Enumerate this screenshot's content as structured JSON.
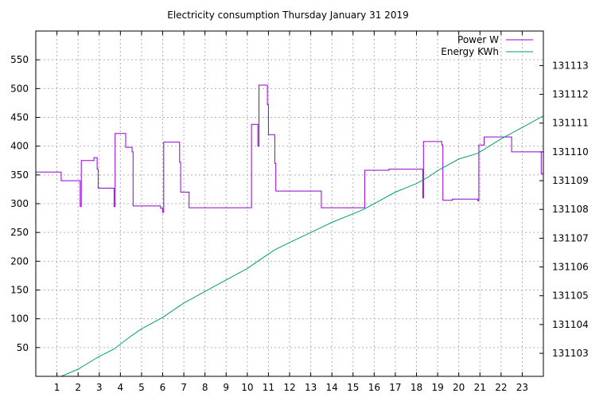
{
  "chart_data": {
    "type": "line",
    "title": "Electricity consumption Thursday January 31 2019",
    "xlabel": "",
    "ylabel": "",
    "y2label": "",
    "xlim": [
      0,
      24
    ],
    "ylim": [
      0,
      600
    ],
    "y2lim": [
      131102.2,
      131114.2
    ],
    "x_ticks": [
      1,
      2,
      3,
      4,
      5,
      6,
      7,
      8,
      9,
      10,
      11,
      12,
      13,
      14,
      15,
      16,
      17,
      18,
      19,
      20,
      21,
      22,
      23
    ],
    "y_ticks": [
      50,
      100,
      150,
      200,
      250,
      300,
      350,
      400,
      450,
      500,
      550
    ],
    "y2_ticks": [
      131103,
      131104,
      131105,
      131106,
      131107,
      131108,
      131109,
      131110,
      131111,
      131112,
      131113
    ],
    "grid": true,
    "grid_style": "dotted",
    "legend_position": "top-right",
    "series": [
      {
        "name": "Power W",
        "axis": "left",
        "color": "#9400d3",
        "style": "step",
        "points": [
          [
            0,
            355
          ],
          [
            1.2,
            355
          ],
          [
            1.2,
            340
          ],
          [
            2.1,
            340
          ],
          [
            2.1,
            295
          ],
          [
            2.15,
            295
          ],
          [
            2.15,
            375
          ],
          [
            2.75,
            375
          ],
          [
            2.75,
            380
          ],
          [
            2.9,
            380
          ],
          [
            2.9,
            360
          ],
          [
            2.95,
            360
          ],
          [
            2.95,
            327
          ],
          [
            3.7,
            327
          ],
          [
            3.7,
            295
          ],
          [
            3.75,
            295
          ],
          [
            3.75,
            422
          ],
          [
            4.25,
            422
          ],
          [
            4.25,
            398
          ],
          [
            4.55,
            398
          ],
          [
            4.55,
            390
          ],
          [
            4.6,
            390
          ],
          [
            4.6,
            296
          ],
          [
            5.9,
            296
          ],
          [
            5.9,
            292
          ],
          [
            6.0,
            292
          ],
          [
            6.0,
            285
          ],
          [
            6.05,
            285
          ],
          [
            6.05,
            407
          ],
          [
            6.8,
            407
          ],
          [
            6.8,
            372
          ],
          [
            6.85,
            372
          ],
          [
            6.85,
            320
          ],
          [
            7.25,
            320
          ],
          [
            7.25,
            293
          ],
          [
            10.2,
            293
          ],
          [
            10.2,
            438
          ],
          [
            10.5,
            438
          ],
          [
            10.5,
            400
          ],
          [
            10.55,
            400
          ],
          [
            10.55,
            506
          ],
          [
            10.95,
            506
          ],
          [
            10.95,
            472
          ],
          [
            11.0,
            472
          ],
          [
            11.0,
            420
          ],
          [
            11.3,
            420
          ],
          [
            11.3,
            370
          ],
          [
            11.35,
            370
          ],
          [
            11.35,
            322
          ],
          [
            13.5,
            322
          ],
          [
            13.5,
            293
          ],
          [
            15.55,
            293
          ],
          [
            15.55,
            358
          ],
          [
            16.7,
            358
          ],
          [
            16.7,
            360
          ],
          [
            18.3,
            360
          ],
          [
            18.3,
            310
          ],
          [
            18.33,
            310
          ],
          [
            18.33,
            408
          ],
          [
            19.2,
            408
          ],
          [
            19.2,
            402
          ],
          [
            19.25,
            402
          ],
          [
            19.25,
            306
          ],
          [
            19.7,
            306
          ],
          [
            19.7,
            308
          ],
          [
            20.9,
            308
          ],
          [
            20.9,
            305
          ],
          [
            20.95,
            305
          ],
          [
            20.95,
            402
          ],
          [
            21.2,
            402
          ],
          [
            21.2,
            416
          ],
          [
            22.5,
            416
          ],
          [
            22.5,
            390
          ],
          [
            23.9,
            390
          ],
          [
            23.9,
            352
          ],
          [
            24,
            352
          ]
        ]
      },
      {
        "name": "Energy KWh",
        "axis": "right",
        "color": "#009e73",
        "style": "line",
        "points": [
          [
            1.2,
            131102.2
          ],
          [
            2.0,
            131102.45
          ],
          [
            2.9,
            131102.85
          ],
          [
            3.7,
            131103.15
          ],
          [
            4.5,
            131103.6
          ],
          [
            5.0,
            131103.85
          ],
          [
            6.0,
            131104.25
          ],
          [
            7.0,
            131104.75
          ],
          [
            8.0,
            131105.15
          ],
          [
            9.0,
            131105.55
          ],
          [
            10.0,
            131105.95
          ],
          [
            10.7,
            131106.3
          ],
          [
            11.3,
            131106.6
          ],
          [
            12.0,
            131106.85
          ],
          [
            13.0,
            131107.2
          ],
          [
            14.0,
            131107.55
          ],
          [
            15.0,
            131107.85
          ],
          [
            15.5,
            131108.0
          ],
          [
            16.0,
            131108.2
          ],
          [
            17.0,
            131108.6
          ],
          [
            18.0,
            131108.9
          ],
          [
            18.5,
            131109.1
          ],
          [
            19.0,
            131109.35
          ],
          [
            20.0,
            131109.75
          ],
          [
            20.9,
            131109.95
          ],
          [
            22.0,
            131110.45
          ],
          [
            23.0,
            131110.85
          ],
          [
            24.0,
            131111.25
          ]
        ]
      }
    ]
  }
}
